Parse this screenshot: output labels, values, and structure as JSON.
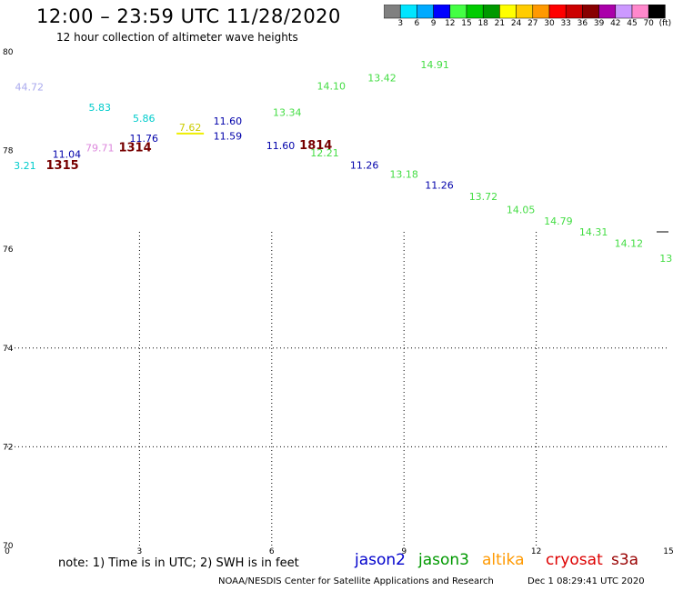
{
  "header": {
    "title": "12:00 – 23:59 UTC 11/28/2020",
    "subtitle": "12 hour collection of altimeter wave heights"
  },
  "colorbar": {
    "colors": [
      "#808080",
      "#00e5ff",
      "#00aaff",
      "#0000ff",
      "#44ff44",
      "#00cc00",
      "#009900",
      "#ffff00",
      "#ffcc00",
      "#ff9900",
      "#ff0000",
      "#cc0000",
      "#880000",
      "#aa00aa",
      "#cc99ff",
      "#ff88cc",
      "#000000"
    ],
    "labels": [
      "3",
      "6",
      "9",
      "12",
      "15",
      "18",
      "21",
      "24",
      "27",
      "30",
      "33",
      "36",
      "39",
      "42",
      "45",
      "70",
      "(ft)"
    ]
  },
  "chart_data": {
    "type": "scatter",
    "xlim": [
      0,
      15
    ],
    "ylim": [
      70,
      80
    ],
    "x_ticks": [
      "0",
      "3",
      "6",
      "9",
      "12",
      "15"
    ],
    "y_ticks": [
      "70",
      "72",
      "74",
      "76",
      "78",
      "80"
    ],
    "grid": true,
    "points": [
      {
        "x": 0.5,
        "y": 79.22,
        "label": "44.72",
        "color": "#aaaaee"
      },
      {
        "x": 0.4,
        "y": 77.62,
        "label": "3.21",
        "color": "#00cccc"
      },
      {
        "x": 1.35,
        "y": 77.85,
        "label": "11.04",
        "color": "#0000aa"
      },
      {
        "x": 1.25,
        "y": 77.62,
        "label": "1315",
        "color": "#770000",
        "bold": true
      },
      {
        "x": 2.1,
        "y": 78.8,
        "label": "5.83",
        "color": "#00cccc"
      },
      {
        "x": 2.1,
        "y": 77.98,
        "label": "79.71",
        "color": "#dd88dd"
      },
      {
        "x": 3.1,
        "y": 78.58,
        "label": "5.86",
        "color": "#00cccc"
      },
      {
        "x": 3.1,
        "y": 78.18,
        "label": "11.76",
        "color": "#0000aa"
      },
      {
        "x": 2.9,
        "y": 77.98,
        "label": "1314",
        "color": "#770000",
        "bold": true
      },
      {
        "x": 4.15,
        "y": 78.4,
        "label": "7.62",
        "color": "#cccc00"
      },
      {
        "x": 5.0,
        "y": 78.53,
        "label": "11.60",
        "color": "#0000aa"
      },
      {
        "x": 5.0,
        "y": 78.22,
        "label": "11.59",
        "color": "#0000aa"
      },
      {
        "x": 6.35,
        "y": 78.7,
        "label": "13.34",
        "color": "#44dd44"
      },
      {
        "x": 6.2,
        "y": 78.03,
        "label": "11.60",
        "color": "#0000aa"
      },
      {
        "x": 7.0,
        "y": 78.03,
        "label": "1814",
        "color": "#770000",
        "bold": true
      },
      {
        "x": 7.2,
        "y": 77.88,
        "label": "12.21",
        "color": "#44dd44"
      },
      {
        "x": 7.35,
        "y": 79.24,
        "label": "14.10",
        "color": "#44dd44"
      },
      {
        "x": 8.1,
        "y": 77.63,
        "label": "11.26",
        "color": "#0000aa"
      },
      {
        "x": 8.5,
        "y": 79.4,
        "label": "13.42",
        "color": "#44dd44"
      },
      {
        "x": 9.0,
        "y": 77.45,
        "label": "13.18",
        "color": "#44dd44"
      },
      {
        "x": 9.7,
        "y": 79.67,
        "label": "14.91",
        "color": "#44dd44"
      },
      {
        "x": 9.8,
        "y": 77.23,
        "label": "11.26",
        "color": "#0000aa"
      },
      {
        "x": 10.8,
        "y": 77.0,
        "label": "13.72",
        "color": "#44dd44"
      },
      {
        "x": 11.65,
        "y": 76.73,
        "label": "14.05",
        "color": "#44dd44"
      },
      {
        "x": 12.5,
        "y": 76.5,
        "label": "14.79",
        "color": "#44dd44"
      },
      {
        "x": 13.3,
        "y": 76.28,
        "label": "14.31",
        "color": "#44dd44"
      },
      {
        "x": 14.1,
        "y": 76.05,
        "label": "14.12",
        "color": "#44dd44"
      },
      {
        "x": 14.98,
        "y": 75.75,
        "label": "13.",
        "color": "#44dd44"
      }
    ]
  },
  "footer": {
    "note": "note: 1) Time is in UTC; 2) SWH is in feet",
    "satellites": [
      {
        "name": "jason2",
        "color": "#0000cc"
      },
      {
        "name": "jason3",
        "color": "#009900"
      },
      {
        "name": "altika",
        "color": "#ff9900"
      },
      {
        "name": "cryosat",
        "color": "#dd0000"
      },
      {
        "name": "s3a",
        "color": "#990000"
      }
    ],
    "credit": "NOAA/NESDIS Center for Satellite Applications and Research",
    "timestamp": "Dec  1 08:29:41 UTC 2020"
  }
}
